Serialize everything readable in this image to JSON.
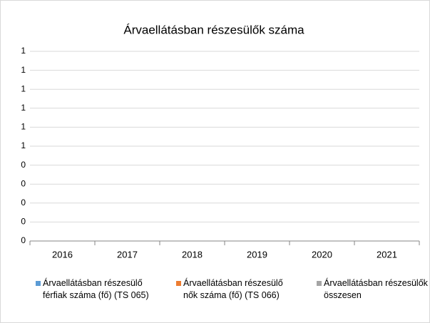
{
  "chart_data": {
    "type": "bar",
    "title": "Árvaellátásban részesülők száma",
    "categories": [
      "2016",
      "2017",
      "2018",
      "2019",
      "2020",
      "2021"
    ],
    "series": [
      {
        "name": "Árvaellátásban részesülő férfiak száma (fő) (TS 065)",
        "color": "#5b9bd5",
        "values": [
          null,
          null,
          null,
          null,
          null,
          null
        ]
      },
      {
        "name": "Árvaellátásban részesülő nők száma (fő) (TS 066)",
        "color": "#ed7d31",
        "values": [
          null,
          null,
          null,
          null,
          null,
          null
        ]
      },
      {
        "name": "Árvaellátásban részesülők összesen",
        "color": "#a5a5a5",
        "values": [
          null,
          null,
          null,
          null,
          null,
          null
        ]
      }
    ],
    "ylim": [
      0,
      1
    ],
    "yticks": [
      0,
      {
        "value": 0.1,
        "label": "0"
      },
      {
        "value": 0.2,
        "label": "0"
      },
      {
        "value": 0.3,
        "label": "0"
      },
      {
        "value": 0.4,
        "label": "0"
      },
      {
        "value": 0.5,
        "label": "1"
      },
      {
        "value": 0.6,
        "label": "1"
      },
      {
        "value": 0.7,
        "label": "1"
      },
      {
        "value": 0.8,
        "label": "1"
      },
      {
        "value": 0.9,
        "label": "1"
      },
      1
    ],
    "grid": true,
    "legend": "bottom"
  }
}
